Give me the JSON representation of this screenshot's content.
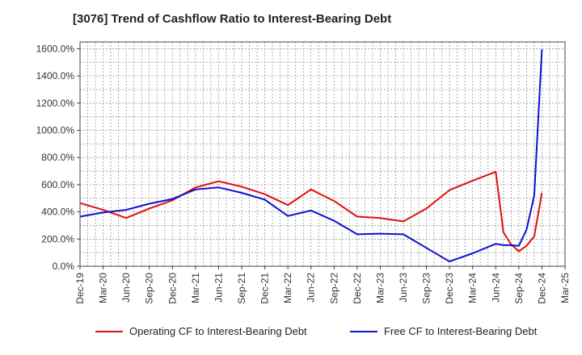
{
  "chart_data": {
    "type": "line",
    "title": "[3076]  Trend of Cashflow Ratio to Interest-Bearing Debt",
    "xlabel": "",
    "ylabel": "",
    "ylim": [
      0,
      1650
    ],
    "y_ticks": [
      "0.0%",
      "200.0%",
      "400.0%",
      "600.0%",
      "800.0%",
      "1000.0%",
      "1200.0%",
      "1400.0%",
      "1600.0%"
    ],
    "x_ticks": [
      "Dec-19",
      "Mar-20",
      "Jun-20",
      "Sep-20",
      "Dec-20",
      "Mar-21",
      "Jun-21",
      "Sep-21",
      "Dec-21",
      "Mar-22",
      "Jun-22",
      "Sep-22",
      "Dec-22",
      "Mar-23",
      "Jun-23",
      "Sep-23",
      "Dec-23",
      "Mar-24",
      "Jun-24",
      "Sep-24",
      "Dec-24",
      "Mar-25"
    ],
    "grid": true,
    "legend_position": "bottom",
    "series": [
      {
        "name": "Operating CF to Interest-Bearing Debt",
        "color": "#e01010",
        "points": [
          [
            "Dec-19",
            465
          ],
          [
            "Mar-20",
            415
          ],
          [
            "Jun-20",
            355
          ],
          [
            "Sep-20",
            425
          ],
          [
            "Dec-20",
            485
          ],
          [
            "Mar-21",
            580
          ],
          [
            "Jun-21",
            625
          ],
          [
            "Sep-21",
            585
          ],
          [
            "Dec-21",
            530
          ],
          [
            "Mar-22",
            450
          ],
          [
            "Jun-22",
            565
          ],
          [
            "Sep-22",
            480
          ],
          [
            "Dec-22",
            365
          ],
          [
            "Mar-23",
            355
          ],
          [
            "Jun-23",
            330
          ],
          [
            "Sep-23",
            425
          ],
          [
            "Dec-23",
            560
          ],
          [
            "Mar-24",
            630
          ],
          [
            "Jun-24",
            695
          ],
          [
            "Jul-24",
            250
          ],
          [
            "Aug-24",
            160
          ],
          [
            "Sep-24",
            110
          ],
          [
            "Oct-24",
            150
          ],
          [
            "Nov-24",
            220
          ],
          [
            "Dec-24",
            540
          ]
        ]
      },
      {
        "name": "Free CF to Interest-Bearing Debt",
        "color": "#1010d0",
        "points": [
          [
            "Dec-19",
            365
          ],
          [
            "Mar-20",
            395
          ],
          [
            "Jun-20",
            415
          ],
          [
            "Sep-20",
            460
          ],
          [
            "Dec-20",
            495
          ],
          [
            "Mar-21",
            565
          ],
          [
            "Jun-21",
            580
          ],
          [
            "Sep-21",
            540
          ],
          [
            "Dec-21",
            490
          ],
          [
            "Mar-22",
            370
          ],
          [
            "Jun-22",
            410
          ],
          [
            "Sep-22",
            335
          ],
          [
            "Dec-22",
            235
          ],
          [
            "Mar-23",
            240
          ],
          [
            "Jun-23",
            235
          ],
          [
            "Sep-23",
            135
          ],
          [
            "Dec-23",
            35
          ],
          [
            "Mar-24",
            95
          ],
          [
            "Jun-24",
            165
          ],
          [
            "Jul-24",
            155
          ],
          [
            "Aug-24",
            155
          ],
          [
            "Sep-24",
            150
          ],
          [
            "Oct-24",
            270
          ],
          [
            "Nov-24",
            520
          ],
          [
            "Dec-24",
            1595
          ]
        ]
      }
    ]
  }
}
